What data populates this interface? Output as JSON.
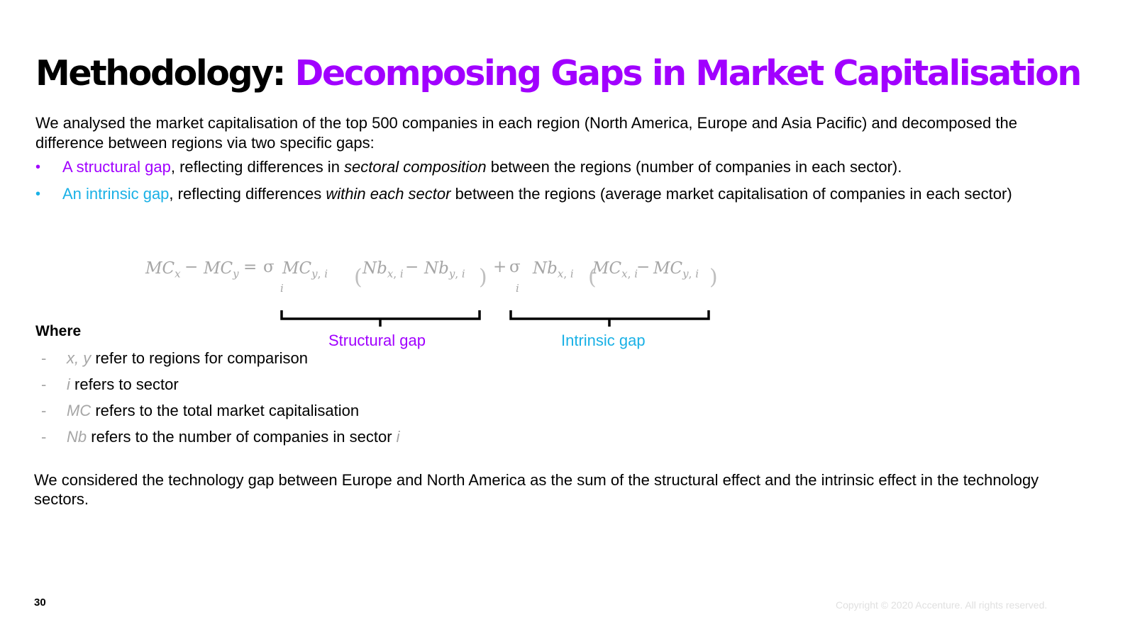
{
  "title": {
    "prefix": "Methodology: ",
    "accent": "Decomposing Gaps in Market Capitalisation"
  },
  "intro": "We analysed the market capitalisation of the top 500 companies in each region (North America, Europe and Asia Pacific) and decomposed the difference between regions via two specific gaps:",
  "bullets": [
    {
      "term": "A structural gap",
      "text_before": ", reflecting differences in ",
      "emphasis": "sectoral composition",
      "text_after": " between the regions (number of companies in each sector)."
    },
    {
      "term": "An intrinsic gap",
      "text_before": ", reflecting differences ",
      "emphasis": "within each sector",
      "text_after": " between the regions (average market capitalisation of companies in each sector)"
    }
  ],
  "formula": {
    "mc": "MC",
    "nb": "Nb",
    "x": "x",
    "y": "y",
    "i": "i",
    "minus": "−",
    "equals": "=",
    "plus": "+",
    "sigma": "σ",
    "comma": ","
  },
  "gap_labels": {
    "structural": "Structural gap",
    "intrinsic": "Intrinsic gap"
  },
  "where_heading": "Where",
  "definitions": [
    {
      "dash": "-",
      "symbol": "x, y",
      "text": " refer to regions for comparison"
    },
    {
      "dash": "-",
      "symbol": "i",
      "text": " refers to sector"
    },
    {
      "dash": "-",
      "symbol": "MC",
      "text": " refers to the total market capitalisation"
    },
    {
      "dash": "-",
      "symbol": "Nb",
      "text": " refers to the number of companies in sector ",
      "trailing_symbol": "i"
    }
  ],
  "closing": "We considered the technology gap between Europe and North America as the sum of the structural effect and the intrinsic effect in the technology sectors.",
  "page_number": "30",
  "copyright": "Copyright © 2020 Accenture. All rights reserved.",
  "colors": {
    "accent_purple": "#a100ff",
    "accent_cyan": "#1ab1e6",
    "formula_gray": "#a6a6a6"
  }
}
